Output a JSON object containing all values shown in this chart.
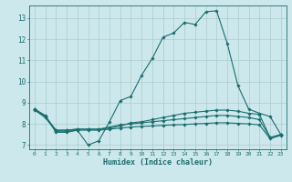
{
  "title": "",
  "xlabel": "Humidex (Indice chaleur)",
  "bg_color": "#cde8ec",
  "grid_color": "#aacccc",
  "line_color": "#1a6e6e",
  "xlim": [
    -0.5,
    23.5
  ],
  "ylim": [
    6.8,
    13.6
  ],
  "yticks": [
    7,
    8,
    9,
    10,
    11,
    12,
    13
  ],
  "xticks": [
    0,
    1,
    2,
    3,
    4,
    5,
    6,
    7,
    8,
    9,
    10,
    11,
    12,
    13,
    14,
    15,
    16,
    17,
    18,
    19,
    20,
    21,
    22,
    23
  ],
  "lines": [
    {
      "x": [
        0,
        1,
        2,
        3,
        4,
        5,
        6,
        7,
        8,
        9,
        10,
        11,
        12,
        13,
        14,
        15,
        16,
        17,
        18,
        19,
        20,
        21,
        22,
        23
      ],
      "y": [
        8.7,
        8.4,
        7.6,
        7.6,
        7.7,
        7.0,
        7.2,
        8.1,
        9.1,
        9.3,
        10.3,
        11.1,
        12.1,
        12.3,
        12.8,
        12.7,
        13.3,
        13.35,
        11.8,
        9.8,
        8.7,
        8.5,
        8.35,
        7.5
      ]
    },
    {
      "x": [
        0,
        1,
        2,
        3,
        4,
        5,
        6,
        7,
        8,
        9,
        10,
        11,
        12,
        13,
        14,
        15,
        16,
        17,
        18,
        19,
        20,
        21,
        22,
        23
      ],
      "y": [
        8.7,
        8.35,
        7.7,
        7.7,
        7.75,
        7.75,
        7.75,
        7.8,
        7.9,
        8.05,
        8.1,
        8.2,
        8.3,
        8.4,
        8.5,
        8.55,
        8.6,
        8.65,
        8.65,
        8.6,
        8.5,
        8.45,
        7.35,
        7.5
      ]
    },
    {
      "x": [
        0,
        1,
        2,
        3,
        4,
        5,
        6,
        7,
        8,
        9,
        10,
        11,
        12,
        13,
        14,
        15,
        16,
        17,
        18,
        19,
        20,
        21,
        22,
        23
      ],
      "y": [
        8.7,
        8.35,
        7.7,
        7.7,
        7.75,
        7.75,
        7.75,
        7.85,
        7.95,
        8.0,
        8.05,
        8.1,
        8.15,
        8.2,
        8.25,
        8.3,
        8.35,
        8.4,
        8.4,
        8.35,
        8.3,
        8.2,
        7.35,
        7.5
      ]
    },
    {
      "x": [
        0,
        1,
        2,
        3,
        4,
        5,
        6,
        7,
        8,
        9,
        10,
        11,
        12,
        13,
        14,
        15,
        16,
        17,
        18,
        19,
        20,
        21,
        22,
        23
      ],
      "y": [
        8.65,
        8.3,
        7.65,
        7.65,
        7.7,
        7.7,
        7.7,
        7.75,
        7.8,
        7.85,
        7.88,
        7.9,
        7.93,
        7.95,
        7.97,
        8.0,
        8.02,
        8.05,
        8.05,
        8.02,
        8.0,
        7.95,
        7.3,
        7.45
      ]
    }
  ]
}
